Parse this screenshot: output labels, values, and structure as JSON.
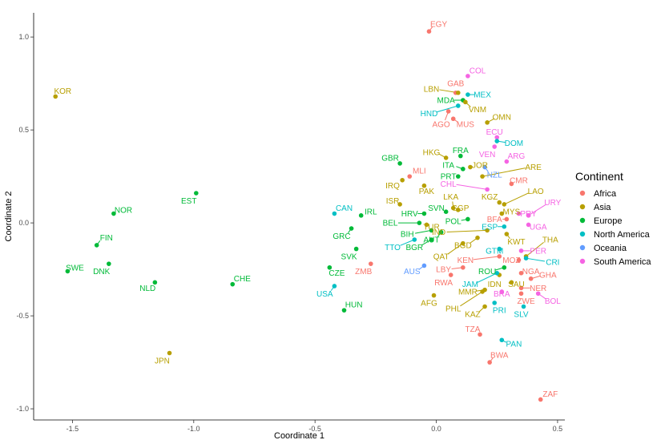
{
  "chart_data": {
    "type": "scatter",
    "title": "",
    "xlabel": "Coordinate 1",
    "ylabel": "Coordinate 2",
    "xlim": [
      -1.66,
      0.53
    ],
    "ylim": [
      -1.06,
      1.13
    ],
    "xticks": [
      -1.5,
      -1.0,
      -0.5,
      0.0,
      0.5
    ],
    "xtick_labels": [
      "-1.5",
      "-1.0",
      "-0.5",
      "0.0",
      "0.5"
    ],
    "yticks": [
      -1.0,
      -0.5,
      0.0,
      0.5,
      1.0
    ],
    "ytick_labels": [
      "-1.0",
      "-0.5",
      "0.0",
      "0.5",
      "1.0"
    ],
    "grid": false,
    "legend": {
      "title": "Continent",
      "placement": "right",
      "entries": [
        {
          "name": "Africa",
          "color": "#F8766D"
        },
        {
          "name": "Asia",
          "color": "#B79F00"
        },
        {
          "name": "Europe",
          "color": "#00BA38"
        },
        {
          "name": "North America",
          "color": "#00BFC4"
        },
        {
          "name": "Oceania",
          "color": "#619CFF"
        },
        {
          "name": "South America",
          "color": "#F564E3"
        }
      ]
    },
    "points": [
      {
        "label": "EGY",
        "continent": "Africa",
        "x": -0.03,
        "y": 1.03,
        "lx": 0.01,
        "ly": 1.07
      },
      {
        "label": "KOR",
        "continent": "Asia",
        "x": -1.57,
        "y": 0.68,
        "lx": -1.54,
        "ly": 0.71
      },
      {
        "label": "COL",
        "continent": "South America",
        "x": 0.13,
        "y": 0.79,
        "lx": 0.17,
        "ly": 0.82
      },
      {
        "label": "GAB",
        "continent": "Africa",
        "x": 0.08,
        "y": 0.7,
        "lx": 0.08,
        "ly": 0.75
      },
      {
        "label": "LBN",
        "continent": "Asia",
        "x": 0.09,
        "y": 0.7,
        "lx": -0.02,
        "ly": 0.72
      },
      {
        "label": "MEX",
        "continent": "North America",
        "x": 0.13,
        "y": 0.69,
        "lx": 0.19,
        "ly": 0.69
      },
      {
        "label": "MDA",
        "continent": "Europe",
        "x": 0.11,
        "y": 0.66,
        "lx": 0.04,
        "ly": 0.66
      },
      {
        "label": "VNM",
        "continent": "Asia",
        "x": 0.12,
        "y": 0.65,
        "lx": 0.17,
        "ly": 0.61
      },
      {
        "label": "HND",
        "continent": "North America",
        "x": 0.09,
        "y": 0.63,
        "lx": -0.03,
        "ly": 0.59
      },
      {
        "label": "AGO",
        "continent": "Africa",
        "x": 0.05,
        "y": 0.6,
        "lx": 0.02,
        "ly": 0.53
      },
      {
        "label": "MUS",
        "continent": "Africa",
        "x": 0.07,
        "y": 0.56,
        "lx": 0.12,
        "ly": 0.53
      },
      {
        "label": "OMN",
        "continent": "Asia",
        "x": 0.21,
        "y": 0.54,
        "lx": 0.27,
        "ly": 0.57
      },
      {
        "label": "ECU",
        "continent": "South America",
        "x": 0.25,
        "y": 0.46,
        "lx": 0.24,
        "ly": 0.49
      },
      {
        "label": "DOM",
        "continent": "North America",
        "x": 0.25,
        "y": 0.44,
        "lx": 0.32,
        "ly": 0.43
      },
      {
        "label": "VEN",
        "continent": "South America",
        "x": 0.24,
        "y": 0.41,
        "lx": 0.21,
        "ly": 0.37
      },
      {
        "label": "ARG",
        "continent": "South America",
        "x": 0.29,
        "y": 0.33,
        "lx": 0.33,
        "ly": 0.36
      },
      {
        "label": "FRA",
        "continent": "Europe",
        "x": 0.1,
        "y": 0.36,
        "lx": 0.1,
        "ly": 0.39
      },
      {
        "label": "HKG",
        "continent": "Asia",
        "x": 0.04,
        "y": 0.35,
        "lx": -0.02,
        "ly": 0.38
      },
      {
        "label": "GBR",
        "continent": "Europe",
        "x": -0.15,
        "y": 0.32,
        "lx": -0.19,
        "ly": 0.35
      },
      {
        "label": "ITA",
        "continent": "Europe",
        "x": 0.11,
        "y": 0.29,
        "lx": 0.05,
        "ly": 0.31
      },
      {
        "label": "JOR",
        "continent": "Asia",
        "x": 0.14,
        "y": 0.3,
        "lx": 0.18,
        "ly": 0.31
      },
      {
        "label": "NZL",
        "continent": "Oceania",
        "x": 0.2,
        "y": 0.3,
        "lx": 0.24,
        "ly": 0.26
      },
      {
        "label": "ARE",
        "continent": "Asia",
        "x": 0.19,
        "y": 0.25,
        "lx": 0.4,
        "ly": 0.3
      },
      {
        "label": "PRT",
        "continent": "Europe",
        "x": 0.09,
        "y": 0.25,
        "lx": 0.05,
        "ly": 0.25
      },
      {
        "label": "MLI",
        "continent": "Africa",
        "x": -0.11,
        "y": 0.25,
        "lx": -0.07,
        "ly": 0.28
      },
      {
        "label": "IRQ",
        "continent": "Asia",
        "x": -0.14,
        "y": 0.23,
        "lx": -0.18,
        "ly": 0.2
      },
      {
        "label": "CMR",
        "continent": "Africa",
        "x": 0.31,
        "y": 0.21,
        "lx": 0.34,
        "ly": 0.23
      },
      {
        "label": "CHL",
        "continent": "South America",
        "x": 0.21,
        "y": 0.18,
        "lx": 0.05,
        "ly": 0.21
      },
      {
        "label": "PAK",
        "continent": "Asia",
        "x": -0.05,
        "y": 0.2,
        "lx": -0.04,
        "ly": 0.17
      },
      {
        "label": "LAO",
        "continent": "Asia",
        "x": 0.28,
        "y": 0.1,
        "lx": 0.41,
        "ly": 0.17
      },
      {
        "label": "LKA",
        "continent": "Asia",
        "x": 0.07,
        "y": 0.08,
        "lx": 0.06,
        "ly": 0.14
      },
      {
        "label": "KGZ",
        "continent": "Asia",
        "x": 0.26,
        "y": 0.11,
        "lx": 0.22,
        "ly": 0.14
      },
      {
        "label": "ISR",
        "continent": "Asia",
        "x": -0.15,
        "y": 0.1,
        "lx": -0.18,
        "ly": 0.12
      },
      {
        "label": "SGP",
        "continent": "Asia",
        "x": 0.09,
        "y": 0.07,
        "lx": 0.1,
        "ly": 0.08
      },
      {
        "label": "SVN",
        "continent": "Europe",
        "x": 0.04,
        "y": 0.06,
        "lx": 0.0,
        "ly": 0.08
      },
      {
        "label": "URY",
        "continent": "South America",
        "x": 0.38,
        "y": 0.04,
        "lx": 0.48,
        "ly": 0.11
      },
      {
        "label": "CAN",
        "continent": "North America",
        "x": -0.42,
        "y": 0.05,
        "lx": -0.38,
        "ly": 0.08
      },
      {
        "label": "IRL",
        "continent": "Europe",
        "x": -0.31,
        "y": 0.04,
        "lx": -0.27,
        "ly": 0.06
      },
      {
        "label": "HRV",
        "continent": "Europe",
        "x": -0.05,
        "y": 0.05,
        "lx": -0.11,
        "ly": 0.05
      },
      {
        "label": "PRY",
        "continent": "South America",
        "x": 0.34,
        "y": 0.05,
        "lx": 0.38,
        "ly": 0.05
      },
      {
        "label": "POL",
        "continent": "Europe",
        "x": 0.13,
        "y": 0.02,
        "lx": 0.07,
        "ly": 0.01
      },
      {
        "label": "MYS",
        "continent": "Asia",
        "x": 0.27,
        "y": 0.05,
        "lx": 0.31,
        "ly": 0.06
      },
      {
        "label": "BEL",
        "continent": "Europe",
        "x": -0.07,
        "y": 0.0,
        "lx": -0.19,
        "ly": 0.0
      },
      {
        "label": "TUR",
        "continent": "Asia",
        "x": -0.04,
        "y": -0.01,
        "lx": -0.02,
        "ly": -0.02
      },
      {
        "label": "UGA",
        "continent": "South America",
        "x": 0.38,
        "y": -0.01,
        "lx": 0.42,
        "ly": -0.02
      },
      {
        "label": "BFA",
        "continent": "Africa",
        "x": 0.29,
        "y": 0.02,
        "lx": 0.24,
        "ly": 0.02
      },
      {
        "label": "ESP",
        "continent": "North America",
        "x": 0.28,
        "y": -0.02,
        "lx": 0.22,
        "ly": -0.02
      },
      {
        "label": "BIH",
        "continent": "Europe",
        "x": -0.02,
        "y": -0.04,
        "lx": -0.12,
        "ly": -0.06
      },
      {
        "label": "IND",
        "continent": "Asia",
        "x": 0.21,
        "y": -0.04,
        "lx": 0.01,
        "ly": -0.05
      },
      {
        "label": "GRC",
        "continent": "Europe",
        "x": -0.35,
        "y": -0.03,
        "lx": -0.39,
        "ly": -0.07
      },
      {
        "label": "THA",
        "continent": "Asia",
        "x": 0.37,
        "y": -0.18,
        "lx": 0.47,
        "ly": -0.09
      },
      {
        "label": "AUT",
        "continent": "Europe",
        "x": 0.02,
        "y": -0.05,
        "lx": -0.02,
        "ly": -0.09
      },
      {
        "label": "KWT",
        "continent": "Asia",
        "x": 0.29,
        "y": -0.06,
        "lx": 0.33,
        "ly": -0.1
      },
      {
        "label": "BGD",
        "continent": "Asia",
        "x": 0.17,
        "y": -0.08,
        "lx": 0.11,
        "ly": -0.12
      },
      {
        "label": "BGR",
        "continent": "Europe",
        "x": -0.02,
        "y": -0.09,
        "lx": -0.09,
        "ly": -0.13
      },
      {
        "label": "TTO",
        "continent": "North America",
        "x": -0.09,
        "y": -0.09,
        "lx": -0.18,
        "ly": -0.13
      },
      {
        "label": "PER",
        "continent": "South America",
        "x": 0.35,
        "y": -0.15,
        "lx": 0.42,
        "ly": -0.15
      },
      {
        "label": "SVK",
        "continent": "Europe",
        "x": -0.33,
        "y": -0.14,
        "lx": -0.36,
        "ly": -0.18
      },
      {
        "label": "GTM",
        "continent": "North America",
        "x": 0.26,
        "y": -0.14,
        "lx": 0.24,
        "ly": -0.15
      },
      {
        "label": "QAT",
        "continent": "Asia",
        "x": 0.11,
        "y": -0.11,
        "lx": 0.02,
        "ly": -0.18
      },
      {
        "label": "KEN",
        "continent": "Africa",
        "x": 0.26,
        "y": -0.18,
        "lx": 0.12,
        "ly": -0.2
      },
      {
        "label": "MOZ",
        "continent": "Africa",
        "x": 0.34,
        "y": -0.2,
        "lx": 0.31,
        "ly": -0.2
      },
      {
        "label": "CRI",
        "continent": "North America",
        "x": 0.37,
        "y": -0.19,
        "lx": 0.48,
        "ly": -0.21
      },
      {
        "label": "ZMB",
        "continent": "Africa",
        "x": -0.27,
        "y": -0.22,
        "lx": -0.3,
        "ly": -0.26
      },
      {
        "label": "CZE",
        "continent": "Europe",
        "x": -0.44,
        "y": -0.24,
        "lx": -0.41,
        "ly": -0.27
      },
      {
        "label": "AUS",
        "continent": "Oceania",
        "x": -0.05,
        "y": -0.23,
        "lx": -0.1,
        "ly": -0.26
      },
      {
        "label": "LBY",
        "continent": "Africa",
        "x": 0.11,
        "y": -0.24,
        "lx": 0.03,
        "ly": -0.25
      },
      {
        "label": "ROU",
        "continent": "Europe",
        "x": 0.28,
        "y": -0.24,
        "lx": 0.21,
        "ly": -0.26
      },
      {
        "label": "NGA",
        "continent": "Africa",
        "x": 0.35,
        "y": -0.27,
        "lx": 0.39,
        "ly": -0.26
      },
      {
        "label": "GHA",
        "continent": "Africa",
        "x": 0.39,
        "y": -0.3,
        "lx": 0.46,
        "ly": -0.28
      },
      {
        "label": "RWA",
        "continent": "Africa",
        "x": 0.06,
        "y": -0.28,
        "lx": 0.03,
        "ly": -0.32
      },
      {
        "label": "IDN",
        "continent": "Asia",
        "x": 0.26,
        "y": -0.28,
        "lx": 0.24,
        "ly": -0.33
      },
      {
        "label": "SAU",
        "continent": "Asia",
        "x": 0.31,
        "y": -0.32,
        "lx": 0.33,
        "ly": -0.33
      },
      {
        "label": "JAM",
        "continent": "North America",
        "x": 0.25,
        "y": -0.27,
        "lx": 0.14,
        "ly": -0.33
      },
      {
        "label": "NER",
        "continent": "Africa",
        "x": 0.35,
        "y": -0.35,
        "lx": 0.42,
        "ly": -0.35
      },
      {
        "label": "USA",
        "continent": "North America",
        "x": -0.42,
        "y": -0.34,
        "lx": -0.46,
        "ly": -0.38
      },
      {
        "label": "MMR",
        "continent": "Asia",
        "x": 0.2,
        "y": -0.36,
        "lx": 0.13,
        "ly": -0.37
      },
      {
        "label": "BRA",
        "continent": "South America",
        "x": 0.27,
        "y": -0.37,
        "lx": 0.27,
        "ly": -0.38
      },
      {
        "label": "BOL",
        "continent": "South America",
        "x": 0.42,
        "y": -0.38,
        "lx": 0.48,
        "ly": -0.42
      },
      {
        "label": "ZWE",
        "continent": "Africa",
        "x": 0.35,
        "y": -0.38,
        "lx": 0.37,
        "ly": -0.42
      },
      {
        "label": "AFG",
        "continent": "Asia",
        "x": -0.01,
        "y": -0.39,
        "lx": -0.03,
        "ly": -0.43
      },
      {
        "label": "PHL",
        "continent": "Asia",
        "x": 0.19,
        "y": -0.37,
        "lx": 0.07,
        "ly": -0.46
      },
      {
        "label": "PRI",
        "continent": "North America",
        "x": 0.24,
        "y": -0.43,
        "lx": 0.26,
        "ly": -0.47
      },
      {
        "label": "KAZ",
        "continent": "Asia",
        "x": 0.2,
        "y": -0.45,
        "lx": 0.15,
        "ly": -0.49
      },
      {
        "label": "SLV",
        "continent": "North America",
        "x": 0.36,
        "y": -0.45,
        "lx": 0.35,
        "ly": -0.49
      },
      {
        "label": "HUN",
        "continent": "Europe",
        "x": -0.38,
        "y": -0.47,
        "lx": -0.34,
        "ly": -0.44
      },
      {
        "label": "TZA",
        "continent": "Africa",
        "x": 0.18,
        "y": -0.6,
        "lx": 0.15,
        "ly": -0.57
      },
      {
        "label": "PAN",
        "continent": "North America",
        "x": 0.27,
        "y": -0.63,
        "lx": 0.32,
        "ly": -0.65
      },
      {
        "label": "BWA",
        "continent": "Africa",
        "x": 0.22,
        "y": -0.75,
        "lx": 0.26,
        "ly": -0.71
      },
      {
        "label": "ZAF",
        "continent": "Africa",
        "x": 0.43,
        "y": -0.95,
        "lx": 0.47,
        "ly": -0.92
      },
      {
        "label": "JPN",
        "continent": "Asia",
        "x": -1.1,
        "y": -0.7,
        "lx": -1.13,
        "ly": -0.74
      },
      {
        "label": "NOR",
        "continent": "Europe",
        "x": -1.33,
        "y": 0.05,
        "lx": -1.29,
        "ly": 0.07
      },
      {
        "label": "EST",
        "continent": "Europe",
        "x": -0.99,
        "y": 0.16,
        "lx": -1.02,
        "ly": 0.12
      },
      {
        "label": "FIN",
        "continent": "Europe",
        "x": -1.4,
        "y": -0.12,
        "lx": -1.36,
        "ly": -0.08
      },
      {
        "label": "SWE",
        "continent": "Europe",
        "x": -1.52,
        "y": -0.26,
        "lx": -1.49,
        "ly": -0.24
      },
      {
        "label": "DNK",
        "continent": "Europe",
        "x": -1.35,
        "y": -0.22,
        "lx": -1.38,
        "ly": -0.26
      },
      {
        "label": "NLD",
        "continent": "Europe",
        "x": -1.16,
        "y": -0.32,
        "lx": -1.19,
        "ly": -0.35
      },
      {
        "label": "CHE",
        "continent": "Europe",
        "x": -0.84,
        "y": -0.33,
        "lx": -0.8,
        "ly": -0.3
      }
    ]
  }
}
